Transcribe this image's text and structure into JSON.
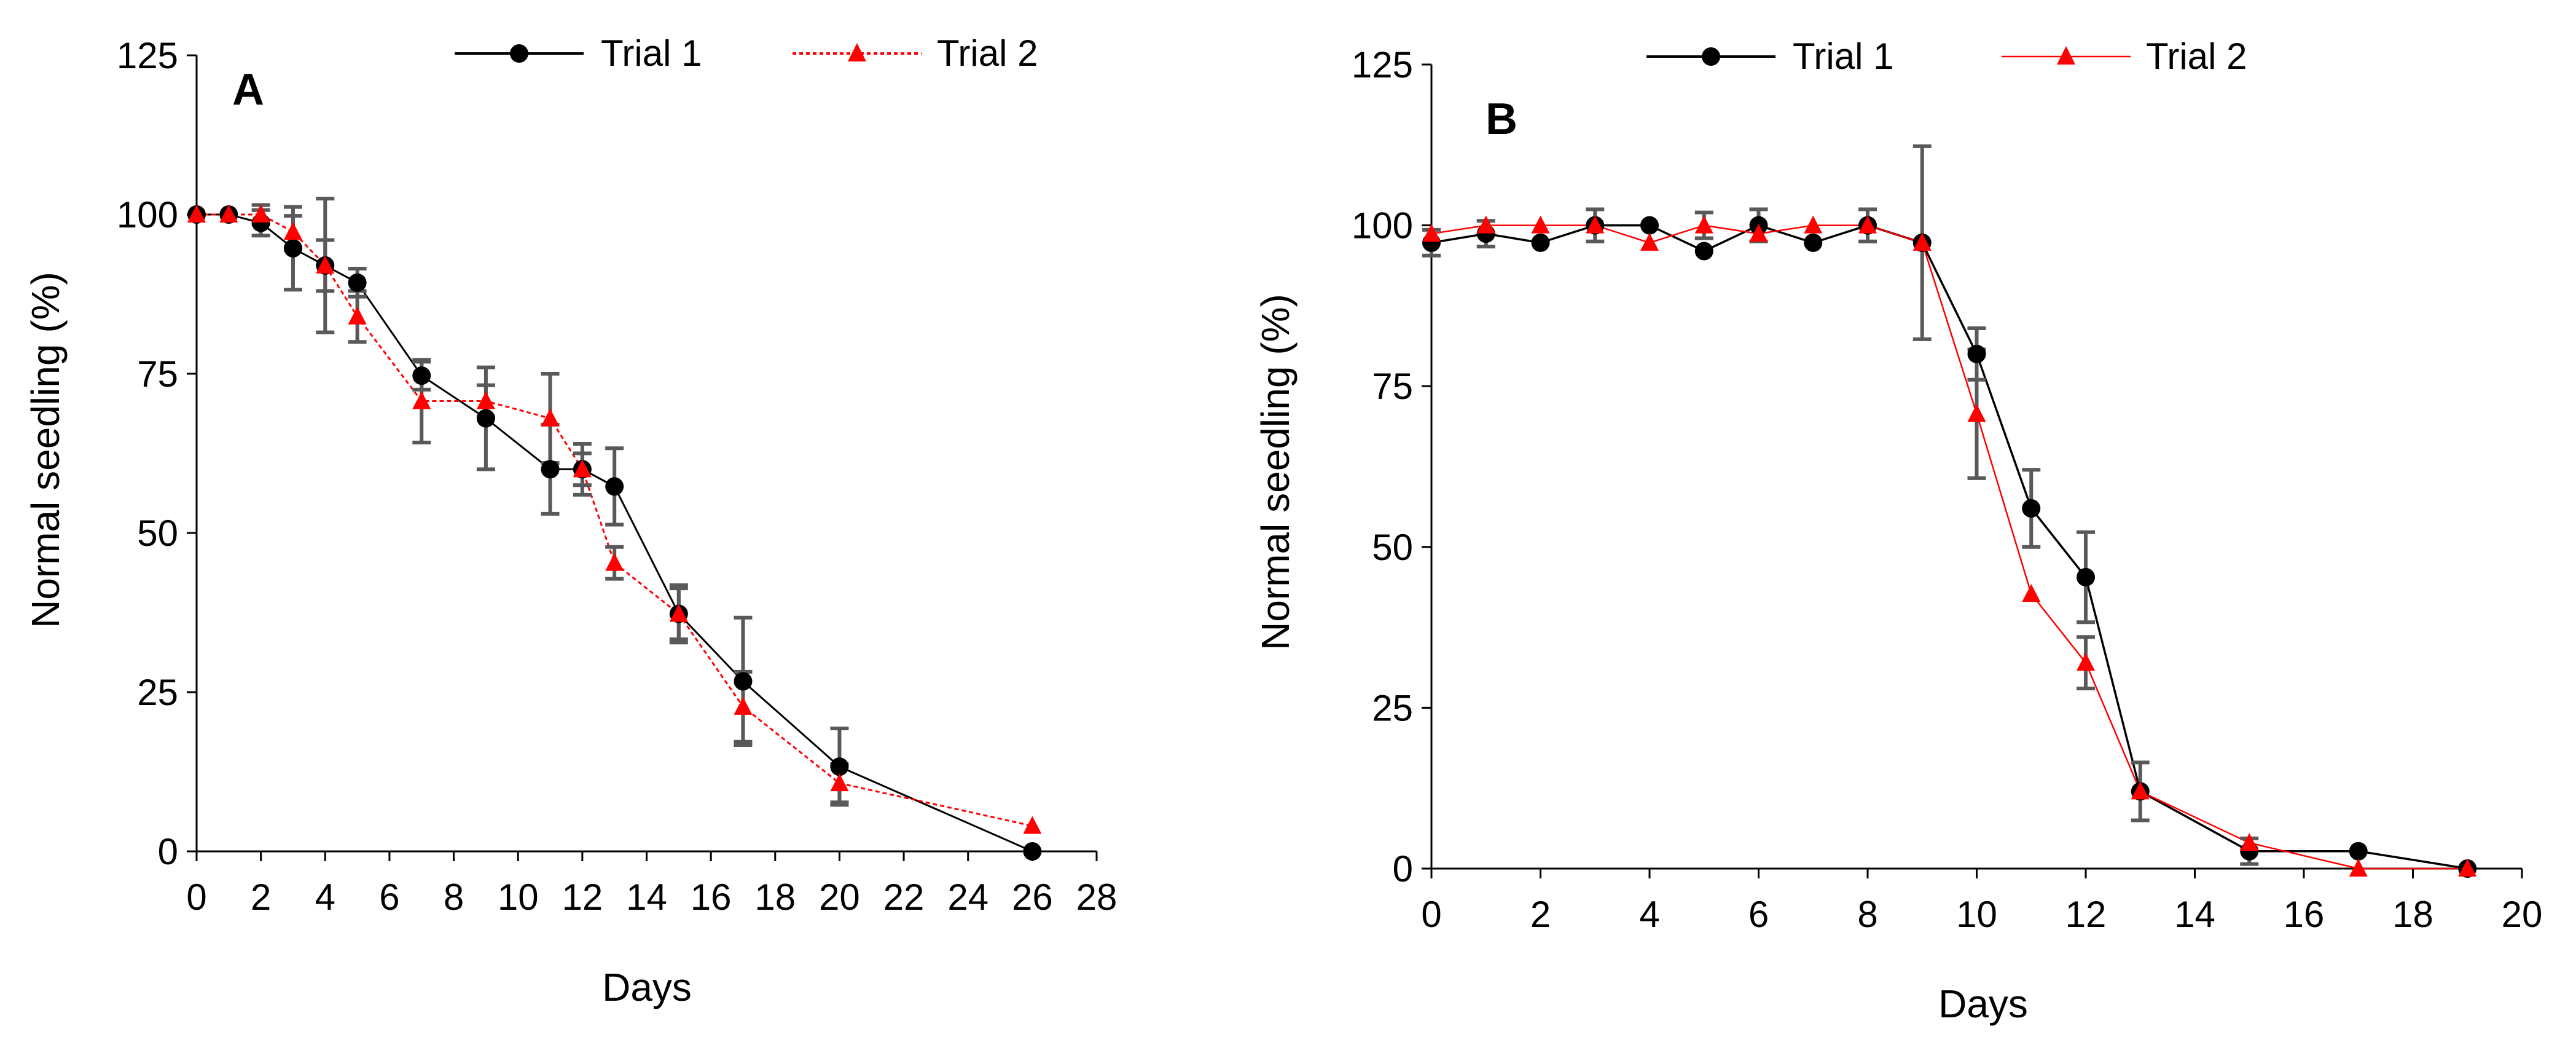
{
  "colors": {
    "trial1": "#000000",
    "trial2": "#ff0000",
    "error_bar": "#595959",
    "axis": "#000000"
  },
  "chart_data": [
    {
      "type": "line",
      "panel_label": "A",
      "title": "",
      "xlabel": "Days",
      "ylabel": "Normal seedling (%)",
      "xlim": [
        0,
        28
      ],
      "ylim": [
        0,
        125
      ],
      "xticks": [
        0,
        2,
        4,
        6,
        8,
        10,
        12,
        14,
        16,
        18,
        20,
        22,
        24,
        26,
        28
      ],
      "yticks": [
        0,
        25,
        50,
        75,
        100,
        125
      ],
      "legend": {
        "position": "top",
        "entries": [
          "Trial 1",
          "Trial 2"
        ]
      },
      "series": [
        {
          "name": "Trial 1",
          "marker": "circle",
          "line": "solid",
          "x": [
            0,
            1,
            2,
            3,
            4,
            5,
            7,
            9,
            11,
            12,
            13,
            15,
            17,
            20,
            26
          ],
          "y": [
            100,
            100,
            98.7,
            94.7,
            92,
            89.3,
            74.7,
            68,
            60,
            60,
            57.3,
            37.3,
            26.7,
            13.3,
            0
          ],
          "error": [
            0,
            0,
            2,
            6.5,
            10.5,
            2.2,
            2.2,
            8,
            7,
            4,
            6,
            4.5,
            10,
            6,
            0
          ]
        },
        {
          "name": "Trial 2",
          "marker": "triangle",
          "line": "dotted",
          "x": [
            0,
            1,
            2,
            3,
            4,
            5,
            7,
            9,
            11,
            12,
            13,
            15,
            17,
            20,
            26
          ],
          "y": [
            100,
            100,
            100,
            97.3,
            92,
            84,
            70.7,
            70.7,
            68,
            60,
            45.3,
            37.3,
            22.7,
            10.7,
            4
          ],
          "error": [
            0,
            0,
            1.5,
            2.5,
            4,
            4,
            6.5,
            2.5,
            7,
            2.5,
            2.5,
            4,
            5.5,
            3,
            0
          ]
        }
      ]
    },
    {
      "type": "line",
      "panel_label": "B",
      "title": "",
      "xlabel": "Days",
      "ylabel": "Normal seedling (%)",
      "xlim": [
        0,
        20
      ],
      "ylim": [
        0,
        125
      ],
      "xticks": [
        0,
        2,
        4,
        6,
        8,
        10,
        12,
        14,
        16,
        18,
        20
      ],
      "yticks": [
        0,
        25,
        50,
        75,
        100,
        125
      ],
      "legend": {
        "position": "top",
        "entries": [
          "Trial 1",
          "Trial 2"
        ]
      },
      "series": [
        {
          "name": "Trial 1",
          "marker": "circle",
          "line": "solid",
          "x": [
            0,
            1,
            2,
            3,
            4,
            5,
            6,
            7,
            8,
            9,
            10,
            11,
            12,
            13,
            15,
            17,
            19
          ],
          "y": [
            97.3,
            98.7,
            97.3,
            100,
            100,
            96,
            100,
            97.3,
            100,
            97.3,
            80,
            56,
            45.3,
            12,
            2.7,
            2.7,
            0
          ],
          "error": [
            2,
            2,
            0,
            2.5,
            0,
            0,
            2.5,
            0,
            2.5,
            15,
            4,
            6,
            7,
            4.5,
            2,
            0,
            0
          ]
        },
        {
          "name": "Trial 2",
          "marker": "triangle",
          "line": "solid-thin",
          "x": [
            0,
            1,
            2,
            3,
            4,
            5,
            6,
            7,
            8,
            9,
            10,
            11,
            12,
            13,
            15,
            17,
            19
          ],
          "y": [
            98.7,
            100,
            100,
            100,
            97.3,
            100,
            98.7,
            100,
            100,
            97.3,
            70.7,
            42.7,
            32,
            12,
            4,
            0,
            0
          ],
          "error": [
            0,
            0,
            0,
            0,
            0,
            2,
            0,
            0,
            0,
            0,
            10,
            0,
            4,
            0,
            0,
            0,
            0
          ]
        }
      ]
    }
  ]
}
